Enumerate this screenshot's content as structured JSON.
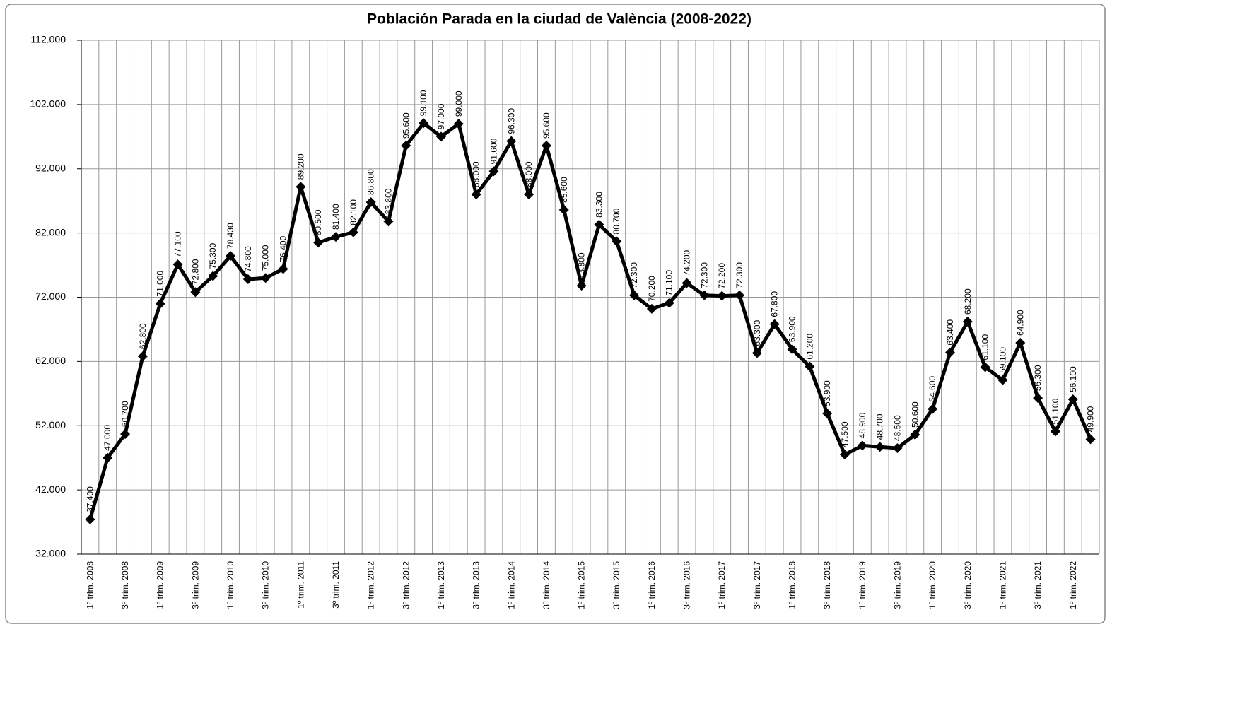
{
  "chart_data": {
    "type": "line",
    "title": "Población Parada en la ciudad de València (2008-2022)",
    "categories": [
      "1º trim. 2008",
      null,
      "3º trim. 2008",
      null,
      "1º trim. 2009",
      null,
      "3º trim. 2009",
      null,
      "1º trim. 2010",
      null,
      "3º trim. 2010",
      null,
      "1º trim. 2011",
      null,
      "3º trim. 2011",
      null,
      "1º trim. 2012",
      null,
      "3º trim. 2012",
      null,
      "1º trim. 2013",
      null,
      "3º trim. 2013",
      null,
      "1º trim. 2014",
      null,
      "3º trim. 2014",
      null,
      "1º trim. 2015",
      null,
      "3º trim. 2015",
      null,
      "1º trim. 2016",
      null,
      "3º trim. 2016",
      null,
      "1º trim. 2017",
      null,
      "3º trim. 2017",
      null,
      "1º trim. 2018",
      null,
      "3º trim. 2018",
      null,
      "1º trim. 2019",
      null,
      "3º trim. 2019",
      null,
      "1º trim. 2020",
      null,
      "3º trim. 2020",
      null,
      "1º trim. 2021",
      null,
      "3º trim. 2021",
      null,
      "1º trim. 2022",
      null
    ],
    "values": [
      37400,
      47000,
      50700,
      62800,
      71000,
      77100,
      72800,
      75300,
      78430,
      74800,
      75000,
      76400,
      89200,
      80500,
      81400,
      82100,
      86800,
      83800,
      95600,
      99100,
      97000,
      99000,
      88000,
      91600,
      96300,
      88000,
      95600,
      85600,
      73800,
      83300,
      80700,
      72300,
      70200,
      71100,
      74200,
      72300,
      72200,
      72300,
      63300,
      67800,
      63900,
      61200,
      53900,
      47500,
      48900,
      48700,
      48500,
      50600,
      54600,
      63400,
      68200,
      61100,
      59100,
      64900,
      56300,
      51100,
      56100,
      49900
    ],
    "value_labels": [
      "37.400",
      "47.000",
      "50.700",
      "62.800",
      "71.000",
      "77.100",
      "72.800",
      "75.300",
      "78.430",
      "74.800",
      "75.000",
      "76.400",
      "89.200",
      "80.500",
      "81.400",
      "82.100",
      "86.800",
      "83.800",
      "95.600",
      "99.100",
      "97.000",
      "99.000",
      "88.000",
      "91.600",
      "96.300",
      "88.000",
      "95.600",
      "85.600",
      "73.800",
      "83.300",
      "80.700",
      "72.300",
      "70.200",
      "71.100",
      "74.200",
      "72.300",
      "72.200",
      "72.300",
      "63.300",
      "67.800",
      "63.900",
      "61.200",
      "53.900",
      "47.500",
      "48.900",
      "48.700",
      "48.500",
      "50.600",
      "54.600",
      "63.400",
      "68.200",
      "61.100",
      "59.100",
      "64.900",
      "56.300",
      "51.100",
      "56.100",
      "49.900"
    ],
    "color": "#000000",
    "ylim": [
      32000,
      112000
    ],
    "yticks": [
      {
        "value": 32000,
        "label": "32.000"
      },
      {
        "value": 42000,
        "label": "42.000"
      },
      {
        "value": 52000,
        "label": "52.000"
      },
      {
        "value": 62000,
        "label": "62.000"
      },
      {
        "value": 72000,
        "label": "72.000"
      },
      {
        "value": 82000,
        "label": "82.000"
      },
      {
        "value": 92000,
        "label": "92.000"
      },
      {
        "value": 102000,
        "label": "102.000"
      },
      {
        "value": 112000,
        "label": "112.000"
      }
    ],
    "grid": true
  }
}
